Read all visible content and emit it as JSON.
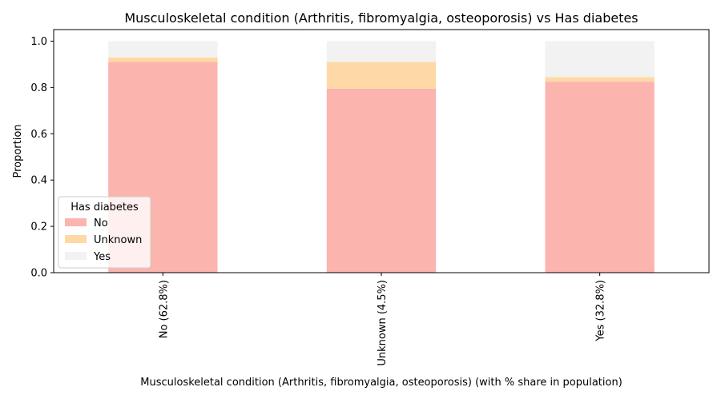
{
  "chart_data": {
    "type": "bar",
    "stacked": true,
    "title": "Musculoskeletal condition (Arthritis, fibromyalgia, osteoporosis) vs Has diabetes",
    "xlabel": "Musculoskeletal condition (Arthritis, fibromyalgia, osteoporosis) (with % share in population)",
    "ylabel": "Proportion",
    "categories": [
      "No (62.8%)",
      "Unknown (4.5%)",
      "Yes (32.8%)"
    ],
    "ylim": [
      0,
      1.05
    ],
    "yticks": [
      "0.0",
      "0.2",
      "0.4",
      "0.6",
      "0.8",
      "1.0"
    ],
    "legend": {
      "title": "Has diabetes",
      "position": "lower-left"
    },
    "series": [
      {
        "name": "No",
        "color": "#fbb4ae",
        "values": [
          0.91,
          0.795,
          0.825
        ]
      },
      {
        "name": "Unknown",
        "color": "#fed9a6",
        "values": [
          0.02,
          0.115,
          0.02
        ]
      },
      {
        "name": "Yes",
        "color": "#f2f2f2",
        "values": [
          0.07,
          0.09,
          0.155
        ]
      }
    ],
    "grid": false
  }
}
